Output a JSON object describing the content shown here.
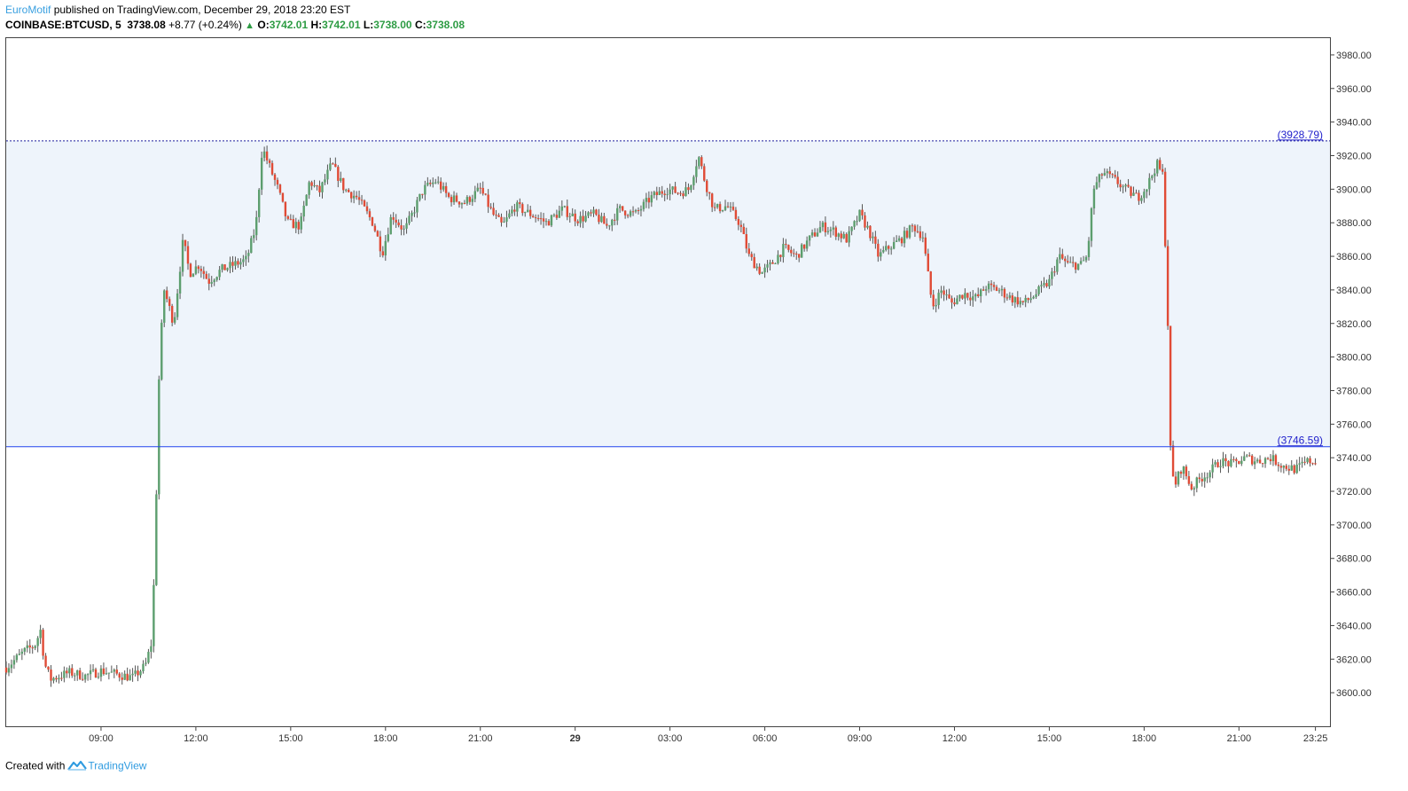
{
  "header": {
    "author": "EuroMotif",
    "published_text": "published on TradingView.com, December 29, 2018 23:20 EST",
    "symbol": "COINBASE:BTCUSD, 5",
    "last": "3738.08",
    "change": "+8.77 (+0.24%)",
    "o_label": "O:",
    "o_value": "3742.01",
    "h_label": "H:",
    "h_value": "3742.01",
    "l_label": "L:",
    "l_value": "3738.00",
    "c_label": "C:",
    "c_value": "3738.08"
  },
  "footer": {
    "created_with": "Created with",
    "brand": "TradingView"
  },
  "colors": {
    "up": "#5c9e6e",
    "down": "#e04b36",
    "wick": "#555555",
    "zone_fill": "#eef4fb",
    "line_upper": "#1d1d9e",
    "line_lower": "#2244ee",
    "axis": "#444444",
    "label_text": "#2222cc"
  },
  "chart_data": {
    "type": "candlestick",
    "symbol": "COINBASE:BTCUSD",
    "interval": "5",
    "ylim": [
      3580,
      3990
    ],
    "y_ticks": [
      3600,
      3620,
      3640,
      3660,
      3680,
      3700,
      3720,
      3740,
      3760,
      3780,
      3800,
      3820,
      3840,
      3860,
      3880,
      3900,
      3920,
      3940,
      3960,
      3980
    ],
    "y_tick_labels": [
      "3600.00",
      "3620.00",
      "3640.00",
      "3660.00",
      "3680.00",
      "3700.00",
      "3720.00",
      "3740.00",
      "3760.00",
      "3780.00",
      "3800.00",
      "3820.00",
      "3840.00",
      "3860.00",
      "3880.00",
      "3900.00",
      "3920.00",
      "3940.00",
      "3960.00",
      "3980.00"
    ],
    "x_range_hours": [
      6,
      47.88
    ],
    "x_ticks": [
      {
        "label": "09:00",
        "hour": 9,
        "bold": false
      },
      {
        "label": "12:00",
        "hour": 12,
        "bold": false
      },
      {
        "label": "15:00",
        "hour": 15,
        "bold": false
      },
      {
        "label": "18:00",
        "hour": 18,
        "bold": false
      },
      {
        "label": "21:00",
        "hour": 21,
        "bold": false
      },
      {
        "label": "29",
        "hour": 24,
        "bold": true
      },
      {
        "label": "03:00",
        "hour": 27,
        "bold": false
      },
      {
        "label": "06:00",
        "hour": 30,
        "bold": false
      },
      {
        "label": "09:00",
        "hour": 33,
        "bold": false
      },
      {
        "label": "12:00",
        "hour": 36,
        "bold": false
      },
      {
        "label": "15:00",
        "hour": 39,
        "bold": false
      },
      {
        "label": "18:00",
        "hour": 42,
        "bold": false
      },
      {
        "label": "21:00",
        "hour": 45,
        "bold": false
      },
      {
        "label": "23:25",
        "hour": 47.42,
        "bold": false
      }
    ],
    "levels": [
      {
        "value": 3928.79,
        "label": "(3928.79)",
        "style": "dotted"
      },
      {
        "value": 3746.59,
        "label": "(3746.59)",
        "style": "solid"
      }
    ],
    "price_path": [
      [
        6.0,
        3615
      ],
      [
        6.6,
        3625
      ],
      [
        6.9,
        3628
      ],
      [
        7.1,
        3638
      ],
      [
        7.2,
        3618
      ],
      [
        7.4,
        3608
      ],
      [
        8.0,
        3612
      ],
      [
        8.5,
        3610
      ],
      [
        9.0,
        3613
      ],
      [
        9.5,
        3611
      ],
      [
        10.0,
        3609
      ],
      [
        10.4,
        3616
      ],
      [
        10.6,
        3630
      ],
      [
        10.7,
        3680
      ],
      [
        10.85,
        3800
      ],
      [
        11.0,
        3840
      ],
      [
        11.3,
        3820
      ],
      [
        11.6,
        3870
      ],
      [
        11.8,
        3850
      ],
      [
        12.1,
        3855
      ],
      [
        12.4,
        3845
      ],
      [
        12.8,
        3852
      ],
      [
        13.2,
        3855
      ],
      [
        13.6,
        3858
      ],
      [
        13.9,
        3878
      ],
      [
        14.1,
        3925
      ],
      [
        14.3,
        3915
      ],
      [
        14.6,
        3900
      ],
      [
        14.9,
        3880
      ],
      [
        15.3,
        3878
      ],
      [
        15.6,
        3905
      ],
      [
        15.9,
        3898
      ],
      [
        16.3,
        3915
      ],
      [
        16.7,
        3900
      ],
      [
        17.1,
        3895
      ],
      [
        17.6,
        3880
      ],
      [
        17.9,
        3862
      ],
      [
        18.2,
        3885
      ],
      [
        18.6,
        3875
      ],
      [
        19.2,
        3900
      ],
      [
        19.6,
        3905
      ],
      [
        20.0,
        3895
      ],
      [
        20.5,
        3892
      ],
      [
        21.0,
        3900
      ],
      [
        21.4,
        3885
      ],
      [
        21.7,
        3878
      ],
      [
        22.1,
        3890
      ],
      [
        22.6,
        3885
      ],
      [
        23.1,
        3880
      ],
      [
        23.6,
        3888
      ],
      [
        24.1,
        3882
      ],
      [
        24.6,
        3885
      ],
      [
        25.0,
        3878
      ],
      [
        25.4,
        3888
      ],
      [
        25.9,
        3885
      ],
      [
        26.4,
        3895
      ],
      [
        26.9,
        3900
      ],
      [
        27.3,
        3898
      ],
      [
        27.6,
        3900
      ],
      [
        27.9,
        3920
      ],
      [
        28.1,
        3905
      ],
      [
        28.4,
        3888
      ],
      [
        28.8,
        3890
      ],
      [
        29.2,
        3880
      ],
      [
        29.5,
        3860
      ],
      [
        29.9,
        3850
      ],
      [
        30.2,
        3855
      ],
      [
        30.6,
        3865
      ],
      [
        31.0,
        3860
      ],
      [
        31.4,
        3870
      ],
      [
        31.8,
        3878
      ],
      [
        32.2,
        3875
      ],
      [
        32.6,
        3870
      ],
      [
        33.0,
        3885
      ],
      [
        33.3,
        3875
      ],
      [
        33.6,
        3860
      ],
      [
        33.9,
        3865
      ],
      [
        34.3,
        3870
      ],
      [
        34.7,
        3878
      ],
      [
        35.0,
        3872
      ],
      [
        35.3,
        3830
      ],
      [
        35.6,
        3840
      ],
      [
        35.9,
        3832
      ],
      [
        36.3,
        3838
      ],
      [
        36.7,
        3835
      ],
      [
        37.0,
        3842
      ],
      [
        37.4,
        3840
      ],
      [
        37.8,
        3835
      ],
      [
        38.2,
        3832
      ],
      [
        38.6,
        3838
      ],
      [
        39.0,
        3845
      ],
      [
        39.3,
        3860
      ],
      [
        39.6,
        3855
      ],
      [
        40.0,
        3855
      ],
      [
        40.2,
        3860
      ],
      [
        40.4,
        3900
      ],
      [
        40.7,
        3910
      ],
      [
        41.1,
        3905
      ],
      [
        41.4,
        3900
      ],
      [
        41.8,
        3895
      ],
      [
        42.1,
        3902
      ],
      [
        42.4,
        3915
      ],
      [
        42.6,
        3908
      ],
      [
        42.75,
        3820
      ],
      [
        42.85,
        3730
      ],
      [
        43.0,
        3725
      ],
      [
        43.2,
        3735
      ],
      [
        43.5,
        3722
      ],
      [
        43.8,
        3728
      ],
      [
        44.1,
        3732
      ],
      [
        44.4,
        3738
      ],
      [
        44.8,
        3736
      ],
      [
        45.2,
        3740
      ],
      [
        45.6,
        3738
      ],
      [
        46.0,
        3740
      ],
      [
        46.4,
        3735
      ],
      [
        46.8,
        3733
      ],
      [
        47.2,
        3738
      ],
      [
        47.42,
        3738
      ]
    ]
  }
}
